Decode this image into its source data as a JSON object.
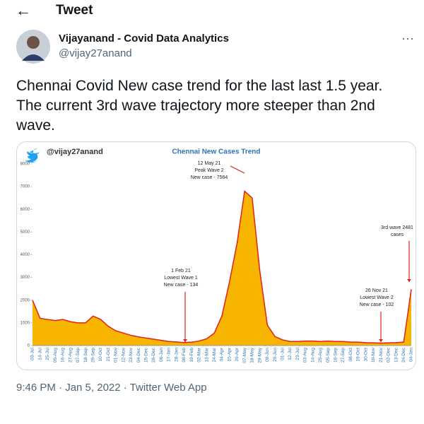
{
  "header": {
    "title": "Tweet"
  },
  "author": {
    "name": "Vijayanand - Covid Data Analytics",
    "handle": "@vijay27anand"
  },
  "tweet_text": "Chennai Covid New case trend for the last last 1.5 year. The current 3rd wave trajectory more steeper than 2nd wave.",
  "chart_data": {
    "type": "area",
    "title": "Chennai New Cases Trend",
    "watermark": "@vijay27anand",
    "categories": [
      "03-Jul",
      "14-Jul",
      "25-Jul",
      "05-Aug",
      "16-Aug",
      "27-Aug",
      "07-Sep",
      "18-Sep",
      "29-Sep",
      "10-Oct",
      "21-Oct",
      "01-Nov",
      "12-Nov",
      "23-Nov",
      "04-Dec",
      "15-Dec",
      "26-Dec",
      "06-Jan",
      "17-Jan",
      "28-Jan",
      "08-Feb",
      "19-Feb",
      "02-Mar",
      "13-Mar",
      "24-Mar",
      "04-Apr",
      "15-Apr",
      "26-Apr",
      "07-May",
      "18-May",
      "29-May",
      "09-Jun",
      "20-Jun",
      "01-Jul",
      "12-Jul",
      "23-Jul",
      "03-Aug",
      "14-Aug",
      "25-Aug",
      "05-Sep",
      "16-Sep",
      "27-Sep",
      "08-Oct",
      "19-Oct",
      "30-Oct",
      "10-Nov",
      "21-Nov",
      "02-Dec",
      "13-Dec",
      "24-Dec",
      "04-Jan"
    ],
    "values": [
      2000,
      1200,
      1150,
      1100,
      1150,
      1050,
      1000,
      1000,
      1300,
      1150,
      850,
      650,
      550,
      450,
      380,
      330,
      280,
      230,
      180,
      160,
      134,
      150,
      200,
      300,
      550,
      1300,
      2800,
      4500,
      6800,
      6500,
      3300,
      900,
      400,
      250,
      180,
      180,
      200,
      200,
      180,
      200,
      180,
      180,
      150,
      150,
      130,
      120,
      110,
      120,
      130,
      150,
      2481
    ],
    "color": "#f7b500",
    "line_color": "#e0201c",
    "ylim": [
      0,
      8000
    ],
    "yticks": [
      0,
      1000,
      2000,
      3000,
      4000,
      5000,
      6000,
      7000,
      8000
    ],
    "annotations": [
      {
        "lines": [
          "12 May 21",
          "Peak Wave 2",
          "New case - 7564"
        ]
      },
      {
        "lines": [
          "1 Feb 21",
          "Lowest Wave 1",
          "New case - 134"
        ]
      },
      {
        "lines": [
          "26 Nov 21",
          "Lowest Wave 2",
          "New case - 102"
        ]
      },
      {
        "lines": [
          "3rd wave 2481",
          "cases"
        ]
      }
    ]
  },
  "meta": "9:46 PM · Jan 5, 2022 · Twitter Web App"
}
